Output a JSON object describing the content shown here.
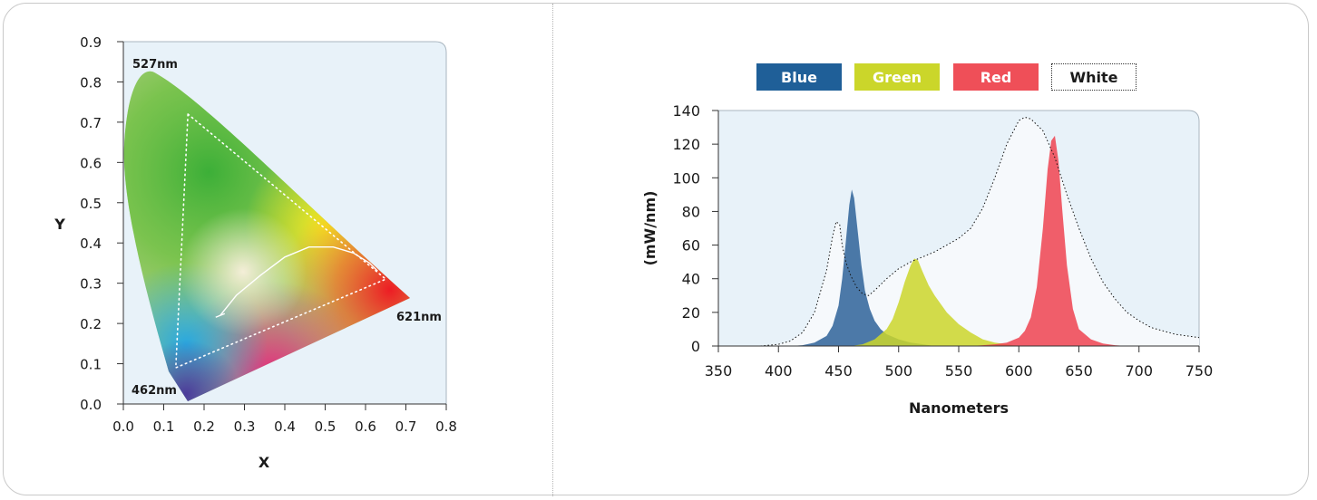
{
  "chart_data": [
    {
      "type": "chromaticity",
      "xlabel": "X",
      "ylabel": "Y",
      "xlim": [
        0.0,
        0.8
      ],
      "ylim": [
        0.0,
        0.9
      ],
      "xticks": [
        "0.0",
        "0.1",
        "0.2",
        "0.3",
        "0.4",
        "0.5",
        "0.6",
        "0.7",
        "0.8"
      ],
      "yticks": [
        "0.0",
        "0.1",
        "0.2",
        "0.3",
        "0.4",
        "0.5",
        "0.6",
        "0.7",
        "0.8",
        "0.9"
      ],
      "grid": false,
      "locus_labels": [
        {
          "text": "527nm",
          "x": 0.07,
          "y": 0.83
        },
        {
          "text": "621nm",
          "x": 0.68,
          "y": 0.22
        },
        {
          "text": "462nm",
          "x": 0.16,
          "y": 0.03
        }
      ],
      "gamut_triangle": [
        [
          0.16,
          0.72
        ],
        [
          0.65,
          0.31
        ],
        [
          0.13,
          0.09
        ]
      ],
      "planckian_curve": [
        [
          0.24,
          0.22
        ],
        [
          0.28,
          0.27
        ],
        [
          0.34,
          0.32
        ],
        [
          0.4,
          0.365
        ],
        [
          0.46,
          0.39
        ],
        [
          0.52,
          0.39
        ],
        [
          0.57,
          0.375
        ],
        [
          0.61,
          0.35
        ],
        [
          0.63,
          0.33
        ]
      ]
    },
    {
      "type": "area",
      "xlabel": "Nanometers",
      "ylabel": "(mW/nm)",
      "xlim": [
        350,
        750
      ],
      "ylim": [
        0,
        140
      ],
      "xticks": [
        "350",
        "400",
        "450",
        "500",
        "550",
        "600",
        "650",
        "700",
        "750"
      ],
      "yticks": [
        "0",
        "20",
        "40",
        "60",
        "80",
        "100",
        "120",
        "140"
      ],
      "grid": false,
      "legend_position": "top",
      "series": [
        {
          "name": "Blue",
          "color": "#2e6399",
          "x": [
            410,
            420,
            430,
            440,
            445,
            450,
            453,
            456,
            459,
            461,
            463,
            466,
            469,
            472,
            476,
            480,
            485,
            490,
            500,
            510,
            520,
            530
          ],
          "y": [
            0,
            0.5,
            2,
            6,
            12,
            24,
            40,
            62,
            84,
            93,
            88,
            68,
            48,
            33,
            22,
            15,
            10,
            7,
            4,
            2,
            1,
            0
          ]
        },
        {
          "name": "Green",
          "color": "#cbd62a",
          "x": [
            460,
            470,
            480,
            490,
            495,
            500,
            505,
            510,
            513,
            516,
            520,
            525,
            530,
            540,
            550,
            560,
            570,
            580,
            590,
            600
          ],
          "y": [
            0,
            1,
            4,
            10,
            16,
            26,
            38,
            48,
            52,
            51,
            44,
            36,
            30,
            20,
            13,
            8,
            4,
            2,
            1,
            0
          ]
        },
        {
          "name": "Red",
          "color": "#ef4350",
          "x": [
            560,
            570,
            580,
            590,
            600,
            605,
            610,
            615,
            620,
            624,
            627,
            630,
            633,
            636,
            640,
            645,
            650,
            660,
            670,
            680,
            690,
            700
          ],
          "y": [
            0,
            0.5,
            1,
            2,
            5,
            9,
            17,
            35,
            70,
            105,
            122,
            125,
            110,
            82,
            48,
            22,
            10,
            4,
            1.5,
            0.5,
            0,
            0
          ]
        },
        {
          "name": "White",
          "color": "#111111",
          "x": [
            385,
            400,
            410,
            420,
            430,
            440,
            445,
            448,
            451,
            453,
            456,
            460,
            465,
            470,
            475,
            480,
            490,
            500,
            510,
            520,
            530,
            540,
            550,
            560,
            570,
            580,
            590,
            600,
            605,
            610,
            620,
            630,
            640,
            650,
            660,
            670,
            680,
            690,
            700,
            710,
            720,
            730,
            740,
            750
          ],
          "y": [
            0,
            1,
            3,
            8,
            20,
            45,
            65,
            74,
            72,
            60,
            50,
            42,
            35,
            31,
            30,
            33,
            40,
            46,
            50,
            53,
            56,
            60,
            64,
            70,
            82,
            100,
            120,
            134,
            136,
            135,
            128,
            112,
            90,
            70,
            52,
            38,
            28,
            20,
            15,
            11,
            9,
            7,
            6,
            5
          ]
        }
      ]
    }
  ]
}
